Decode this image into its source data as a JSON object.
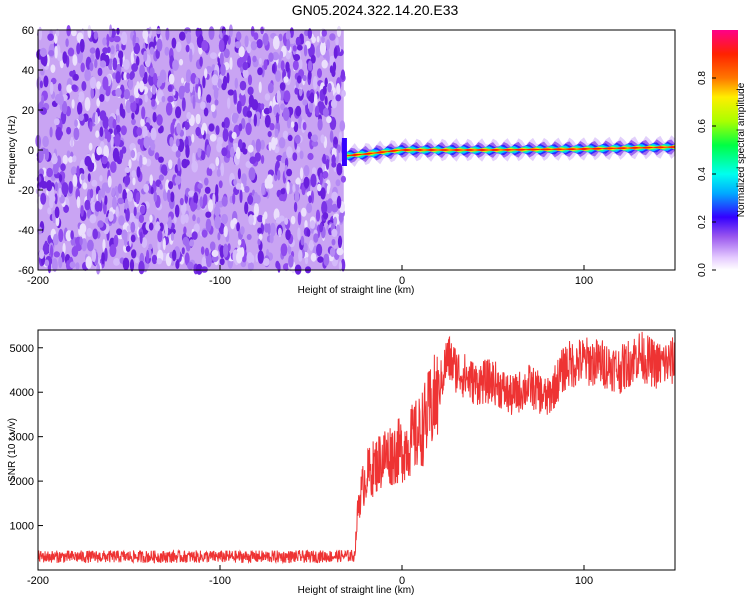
{
  "title": "GN05.2024.322.14.20.E33",
  "chart_data": [
    {
      "type": "heatmap",
      "xlabel": "Height of straight line (km)",
      "ylabel": "Frequency (Hz)",
      "xlim": [
        -200,
        150
      ],
      "ylim": [
        -60,
        60
      ],
      "xticks": [
        -200,
        -100,
        0,
        100
      ],
      "xtick_labels": [
        "-200",
        "-100",
        "0",
        "100"
      ],
      "yticks": [
        60,
        40,
        20,
        0,
        -20,
        -40,
        -60
      ],
      "ytick_labels": [
        "60",
        "40",
        "20",
        "0",
        "-20",
        "-40",
        "-60"
      ],
      "noise_region_x": [
        -200,
        -32
      ],
      "signal_line": [
        {
          "x": -32,
          "y": -3
        },
        {
          "x": -20,
          "y": -2
        },
        {
          "x": -10,
          "y": -1
        },
        {
          "x": 0,
          "y": 0
        },
        {
          "x": 50,
          "y": 0
        },
        {
          "x": 100,
          "y": 0.5
        },
        {
          "x": 150,
          "y": 1.5
        }
      ],
      "colorbar": {
        "label": "Normalized spectral amplitude",
        "range": [
          0.0,
          1.0
        ],
        "ticks": [
          0.0,
          0.2,
          0.4,
          0.6,
          0.8
        ],
        "tick_labels": [
          "0.0",
          "0.2",
          "0.4",
          "0.6",
          "0.8"
        ]
      }
    },
    {
      "type": "line",
      "xlabel": "Height of straight line (km)",
      "ylabel": "SNR (10 * v/v)",
      "xlim": [
        -200,
        150
      ],
      "ylim": [
        0,
        5400
      ],
      "xticks": [
        -200,
        -100,
        0,
        100
      ],
      "xtick_labels": [
        "-200",
        "-100",
        "0",
        "100"
      ],
      "yticks": [
        1000,
        2000,
        3000,
        4000,
        5000
      ],
      "ytick_labels": [
        "1000",
        "2000",
        "3000",
        "4000",
        "5000"
      ],
      "color": "#ee3333",
      "series": [
        {
          "x": [
            -200,
            -150,
            -100,
            -50,
            -26,
            -24,
            -20,
            -10,
            0,
            10,
            20,
            25,
            30,
            40,
            50,
            60,
            70,
            80,
            90,
            100,
            110,
            120,
            130,
            140,
            150
          ],
          "y": [
            300,
            300,
            300,
            300,
            320,
            1500,
            2100,
            2550,
            2700,
            3100,
            4000,
            4800,
            4500,
            4200,
            4250,
            3900,
            4150,
            3850,
            4600,
            4700,
            4650,
            4500,
            4850,
            4600,
            4700
          ]
        }
      ]
    }
  ]
}
